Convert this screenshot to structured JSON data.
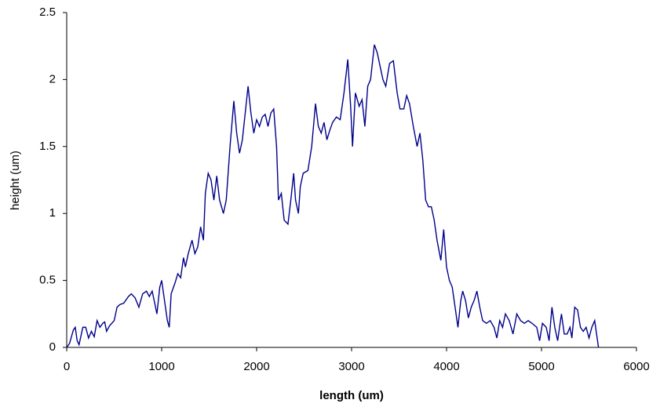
{
  "chart_data": {
    "type": "line",
    "x_label": "length (um)",
    "y_label": "height (um)",
    "xlim": [
      0,
      6000
    ],
    "xticks": [
      0,
      1000,
      2000,
      3000,
      4000,
      5000,
      6000
    ],
    "ylim": [
      0,
      2.5
    ],
    "yticks": [
      0,
      0.5,
      1,
      1.5,
      2,
      2.5
    ],
    "grid": false,
    "x": [
      0,
      30,
      70,
      90,
      110,
      130,
      170,
      200,
      230,
      260,
      290,
      320,
      350,
      380,
      400,
      420,
      450,
      500,
      530,
      560,
      600,
      650,
      680,
      720,
      760,
      800,
      840,
      870,
      900,
      930,
      950,
      980,
      1000,
      1030,
      1060,
      1080,
      1100,
      1140,
      1170,
      1200,
      1230,
      1250,
      1280,
      1320,
      1350,
      1380,
      1410,
      1440,
      1460,
      1490,
      1520,
      1550,
      1580,
      1610,
      1650,
      1680,
      1720,
      1760,
      1790,
      1820,
      1850,
      1880,
      1910,
      1940,
      1970,
      2000,
      2030,
      2060,
      2090,
      2120,
      2150,
      2180,
      2210,
      2230,
      2260,
      2290,
      2330,
      2360,
      2390,
      2410,
      2440,
      2460,
      2490,
      2540,
      2580,
      2620,
      2650,
      2680,
      2710,
      2740,
      2770,
      2800,
      2840,
      2880,
      2920,
      2960,
      2990,
      3010,
      3040,
      3080,
      3110,
      3140,
      3170,
      3200,
      3240,
      3270,
      3300,
      3330,
      3360,
      3400,
      3440,
      3480,
      3510,
      3550,
      3580,
      3610,
      3650,
      3690,
      3720,
      3750,
      3780,
      3810,
      3840,
      3870,
      3900,
      3940,
      3970,
      4000,
      4030,
      4060,
      4090,
      4120,
      4150,
      4170,
      4200,
      4230,
      4260,
      4290,
      4320,
      4350,
      4380,
      4420,
      4460,
      4500,
      4530,
      4560,
      4590,
      4620,
      4660,
      4700,
      4740,
      4780,
      4820,
      4860,
      4900,
      4950,
      4980,
      5010,
      5050,
      5080,
      5110,
      5140,
      5170,
      5210,
      5240,
      5270,
      5300,
      5320,
      5350,
      5380,
      5410,
      5440,
      5470,
      5500,
      5530,
      5560,
      5580,
      5600
    ],
    "series": [
      {
        "color": "#00008b",
        "values": [
          0,
          0.03,
          0.13,
          0.15,
          0.05,
          0.02,
          0.15,
          0.15,
          0.07,
          0.12,
          0.08,
          0.2,
          0.15,
          0.18,
          0.19,
          0.12,
          0.16,
          0.2,
          0.3,
          0.32,
          0.33,
          0.38,
          0.4,
          0.37,
          0.3,
          0.4,
          0.42,
          0.38,
          0.42,
          0.32,
          0.25,
          0.45,
          0.5,
          0.35,
          0.2,
          0.15,
          0.4,
          0.48,
          0.55,
          0.52,
          0.67,
          0.6,
          0.7,
          0.8,
          0.7,
          0.75,
          0.9,
          0.8,
          1.15,
          1.3,
          1.25,
          1.1,
          1.28,
          1.1,
          1.0,
          1.1,
          1.5,
          1.84,
          1.6,
          1.45,
          1.55,
          1.75,
          1.95,
          1.75,
          1.6,
          1.7,
          1.65,
          1.72,
          1.74,
          1.65,
          1.75,
          1.78,
          1.5,
          1.1,
          1.15,
          0.95,
          0.92,
          1.1,
          1.3,
          1.1,
          1.0,
          1.2,
          1.3,
          1.32,
          1.5,
          1.82,
          1.65,
          1.6,
          1.68,
          1.55,
          1.62,
          1.68,
          1.72,
          1.7,
          1.9,
          2.15,
          1.8,
          1.5,
          1.9,
          1.8,
          1.85,
          1.65,
          1.95,
          2.0,
          2.26,
          2.2,
          2.1,
          2.0,
          1.95,
          2.12,
          2.14,
          1.9,
          1.78,
          1.78,
          1.88,
          1.82,
          1.65,
          1.5,
          1.6,
          1.4,
          1.1,
          1.05,
          1.05,
          0.95,
          0.8,
          0.65,
          0.88,
          0.6,
          0.5,
          0.45,
          0.3,
          0.15,
          0.35,
          0.42,
          0.35,
          0.22,
          0.3,
          0.35,
          0.42,
          0.3,
          0.2,
          0.18,
          0.2,
          0.15,
          0.07,
          0.2,
          0.15,
          0.25,
          0.2,
          0.1,
          0.25,
          0.2,
          0.18,
          0.2,
          0.18,
          0.15,
          0.05,
          0.18,
          0.15,
          0.05,
          0.3,
          0.15,
          0.05,
          0.25,
          0.1,
          0.1,
          0.15,
          0.07,
          0.3,
          0.28,
          0.15,
          0.12,
          0.15,
          0.07,
          0.15,
          0.2,
          0.1,
          0
        ]
      }
    ]
  }
}
